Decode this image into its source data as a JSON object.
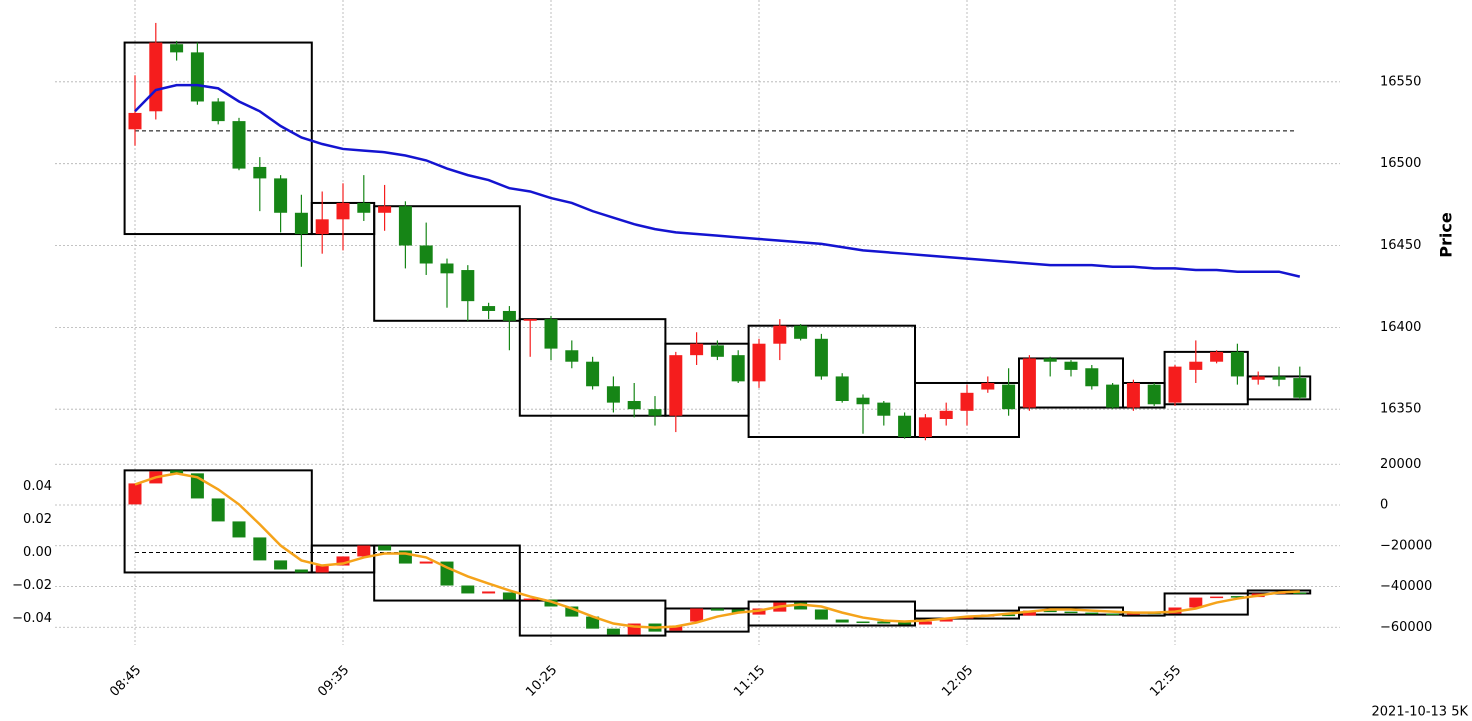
{
  "footer": "2021-10-13 5K",
  "chart_data": [
    {
      "type": "candlestick",
      "ylabel": "Price",
      "up_color": "#f51d1d",
      "down_color": "#168516",
      "grid": true,
      "ylim": [
        16322,
        16600
      ],
      "yticks": [
        16350,
        16400,
        16450,
        16500,
        16550
      ],
      "hline": 16520,
      "open": [
        16521,
        16532,
        16573,
        16568,
        16538,
        16526,
        16498,
        16491,
        16470,
        16457,
        16466,
        16476,
        16470,
        16474,
        16450,
        16439,
        16435,
        16413,
        16410,
        16404,
        16405,
        16386,
        16379,
        16364,
        16355,
        16350,
        16346,
        16383,
        16389,
        16383,
        16367,
        16390,
        16401,
        16393,
        16370,
        16357,
        16354,
        16346,
        16333,
        16344,
        16349,
        16362,
        16365,
        16351,
        16381,
        16379,
        16375,
        16365,
        16351,
        16365,
        16354,
        16374,
        16379,
        16385,
        16368,
        16370,
        16369
      ],
      "high": [
        16554,
        16586,
        16575,
        16574,
        16540,
        16528,
        16504,
        16493,
        16481,
        16483,
        16488,
        16493,
        16487,
        16477,
        16464,
        16442,
        16438,
        16415,
        16413,
        16405,
        16407,
        16392,
        16382,
        16370,
        16366,
        16358,
        16385,
        16397,
        16392,
        16386,
        16393,
        16405,
        16402,
        16396,
        16372,
        16359,
        16355,
        16348,
        16347,
        16354,
        16365,
        16370,
        16375,
        16383,
        16382,
        16380,
        16377,
        16366,
        16368,
        16366,
        16377,
        16392,
        16386,
        16390,
        16373,
        16376,
        16376
      ],
      "low": [
        16511,
        16527,
        16563,
        16536,
        16524,
        16496,
        16471,
        16458,
        16437,
        16445,
        16447,
        16465,
        16459,
        16436,
        16432,
        16412,
        16404,
        16405,
        16386,
        16382,
        16380,
        16375,
        16362,
        16348,
        16345,
        16340,
        16336,
        16377,
        16380,
        16366,
        16363,
        16380,
        16392,
        16368,
        16354,
        16335,
        16340,
        16332,
        16331,
        16340,
        16340,
        16360,
        16346,
        16349,
        16370,
        16370,
        16362,
        16350,
        16349,
        16352,
        16352,
        16366,
        16378,
        16365,
        16365,
        16364,
        16356
      ],
      "close": [
        16531,
        16574,
        16568,
        16538,
        16526,
        16497,
        16491,
        16470,
        16457,
        16466,
        16476,
        16470,
        16474,
        16450,
        16439,
        16433,
        16416,
        16410,
        16404,
        16405,
        16387,
        16379,
        16364,
        16354,
        16350,
        16346,
        16383,
        16390,
        16382,
        16367,
        16390,
        16401,
        16393,
        16370,
        16355,
        16353,
        16346,
        16333,
        16345,
        16349,
        16360,
        16366,
        16350,
        16381,
        16379,
        16374,
        16364,
        16351,
        16366,
        16353,
        16376,
        16379,
        16385,
        16370,
        16370,
        16368,
        16357
      ],
      "series": [
        {
          "color": "#1414d0",
          "values": [
            16532,
            16545,
            16548,
            16548,
            16546,
            16538,
            16532,
            16523,
            16516,
            16512,
            16509,
            16508,
            16507,
            16505,
            16502,
            16497,
            16493,
            16490,
            16485,
            16483,
            16479,
            16476,
            16471,
            16467,
            16463,
            16460,
            16458,
            16457,
            16456,
            16455,
            16454,
            16453,
            16452,
            16451,
            16449,
            16447,
            16446,
            16445,
            16444,
            16443,
            16442,
            16441,
            16440,
            16439,
            16438,
            16438,
            16438,
            16437,
            16437,
            16436,
            16436,
            16435,
            16435,
            16434,
            16434,
            16434,
            16431
          ]
        }
      ],
      "boxes": [
        {
          "start": 0,
          "end": 8,
          "low": 16457,
          "high": 16574
        },
        {
          "start": 9,
          "end": 11,
          "low": 16457,
          "high": 16476
        },
        {
          "start": 12,
          "end": 18,
          "low": 16404,
          "high": 16474
        },
        {
          "start": 19,
          "end": 25,
          "low": 16346,
          "high": 16405
        },
        {
          "start": 26,
          "end": 29,
          "low": 16346,
          "high": 16390
        },
        {
          "start": 30,
          "end": 37,
          "low": 16333,
          "high": 16401
        },
        {
          "start": 38,
          "end": 42,
          "low": 16333,
          "high": 16366
        },
        {
          "start": 43,
          "end": 47,
          "low": 16351,
          "high": 16381
        },
        {
          "start": 48,
          "end": 49,
          "low": 16351,
          "high": 16366
        },
        {
          "start": 50,
          "end": 53,
          "low": 16353,
          "high": 16385
        },
        {
          "start": 54,
          "end": 56,
          "low": 16356,
          "high": 16370
        }
      ]
    },
    {
      "type": "candlestick",
      "up_color": "#f51d1d",
      "down_color": "#168516",
      "grid": "y2",
      "categories": [
        "08:45",
        null,
        null,
        null,
        null,
        null,
        null,
        null,
        null,
        null,
        "09:35",
        null,
        null,
        null,
        null,
        null,
        null,
        null,
        null,
        null,
        "10:25",
        null,
        null,
        null,
        null,
        null,
        null,
        null,
        null,
        null,
        "11:15",
        null,
        null,
        null,
        null,
        null,
        null,
        null,
        null,
        null,
        "12:05",
        null,
        null,
        null,
        null,
        null,
        null,
        null,
        null,
        null,
        "12:55",
        null,
        null,
        null,
        null,
        null,
        null
      ],
      "ylim": [
        -0.056,
        0.059
      ],
      "yticks": [
        {
          "value": -0.04,
          "label": "−0.04"
        },
        {
          "value": -0.02,
          "label": "−0.02"
        },
        {
          "value": 0,
          "label": "0.00"
        },
        0.02,
        0.04
      ],
      "hline": 0,
      "y2lim": [
        -68700,
        24540
      ],
      "y2ticks": [
        {
          "value": -60000,
          "label": "−60000"
        },
        {
          "value": -40000,
          "label": "−40000"
        },
        {
          "value": -20000,
          "label": "−20000"
        },
        0,
        20000
      ],
      "open": [
        0.0291,
        0.0418,
        0.0497,
        0.0479,
        0.0327,
        0.0188,
        0.0091,
        -0.0048,
        -0.0103,
        -0.0121,
        -0.0079,
        -0.0024,
        0.0042,
        0.0012,
        -0.0067,
        -0.0055,
        -0.02,
        -0.0248,
        -0.0242,
        -0.0285,
        -0.0285,
        -0.0327,
        -0.0388,
        -0.0461,
        -0.0497,
        -0.043,
        -0.0473,
        -0.0418,
        -0.0339,
        -0.0345,
        -0.0376,
        -0.0358,
        -0.0303,
        -0.0345,
        -0.0406,
        -0.0418,
        -0.0418,
        -0.0424,
        -0.0436,
        -0.0418,
        -0.04,
        -0.0388,
        -0.0376,
        -0.0382,
        -0.0352,
        -0.0358,
        -0.0364,
        -0.037,
        -0.0376,
        -0.0364,
        -0.037,
        -0.0333,
        -0.0273,
        -0.0264,
        -0.027,
        -0.0248,
        -0.0242
      ],
      "close": [
        0.0418,
        0.0491,
        0.0479,
        0.0327,
        0.0188,
        0.0091,
        -0.0048,
        -0.0103,
        -0.0121,
        -0.0079,
        -0.0024,
        0.0042,
        0.0012,
        -0.0067,
        -0.0055,
        -0.02,
        -0.0248,
        -0.0236,
        -0.0285,
        -0.0279,
        -0.0327,
        -0.0388,
        -0.0461,
        -0.0497,
        -0.043,
        -0.0479,
        -0.0442,
        -0.0339,
        -0.0352,
        -0.0364,
        -0.0339,
        -0.0303,
        -0.0345,
        -0.0406,
        -0.0424,
        -0.0424,
        -0.043,
        -0.0436,
        -0.0418,
        -0.04,
        -0.0388,
        -0.0376,
        -0.0382,
        -0.0352,
        -0.0358,
        -0.0364,
        -0.037,
        -0.0376,
        -0.0364,
        -0.037,
        -0.0333,
        -0.0273,
        -0.0267,
        -0.027,
        -0.0248,
        -0.0242,
        -0.0248
      ],
      "series": [
        {
          "color": "#f5a31a",
          "values": [
            0.0412,
            0.0455,
            0.0479,
            0.0455,
            0.0382,
            0.0291,
            0.017,
            0.0042,
            -0.0048,
            -0.0079,
            -0.0067,
            -0.003,
            -0.0006,
            -0.0006,
            -0.003,
            -0.0091,
            -0.0145,
            -0.0188,
            -0.023,
            -0.0267,
            -0.0297,
            -0.0339,
            -0.0388,
            -0.043,
            -0.0448,
            -0.0455,
            -0.0448,
            -0.0424,
            -0.0388,
            -0.0364,
            -0.0352,
            -0.0327,
            -0.0315,
            -0.0327,
            -0.0364,
            -0.0394,
            -0.0412,
            -0.0418,
            -0.0412,
            -0.04,
            -0.0388,
            -0.0382,
            -0.037,
            -0.0358,
            -0.0345,
            -0.0345,
            -0.0352,
            -0.0358,
            -0.0364,
            -0.0364,
            -0.0358,
            -0.0339,
            -0.0303,
            -0.0279,
            -0.0261,
            -0.0242,
            -0.0236
          ]
        }
      ],
      "boxes": [
        {
          "start": 0,
          "end": 8,
          "low": -0.0121,
          "high": 0.0497
        },
        {
          "start": 9,
          "end": 11,
          "low": -0.0121,
          "high": 0.0042
        },
        {
          "start": 12,
          "end": 18,
          "low": -0.0291,
          "high": 0.0042
        },
        {
          "start": 19,
          "end": 25,
          "low": -0.0503,
          "high": -0.0291
        },
        {
          "start": 26,
          "end": 29,
          "low": -0.0479,
          "high": -0.0339
        },
        {
          "start": 30,
          "end": 37,
          "low": -0.0442,
          "high": -0.0297
        },
        {
          "start": 38,
          "end": 42,
          "low": -0.04,
          "high": -0.0352
        },
        {
          "start": 43,
          "end": 47,
          "low": -0.0376,
          "high": -0.0333
        },
        {
          "start": 48,
          "end": 49,
          "low": -0.0382,
          "high": -0.0364
        },
        {
          "start": 50,
          "end": 53,
          "low": -0.0376,
          "high": -0.0248
        },
        {
          "start": 54,
          "end": 56,
          "low": -0.0248,
          "high": -0.023
        }
      ]
    }
  ]
}
